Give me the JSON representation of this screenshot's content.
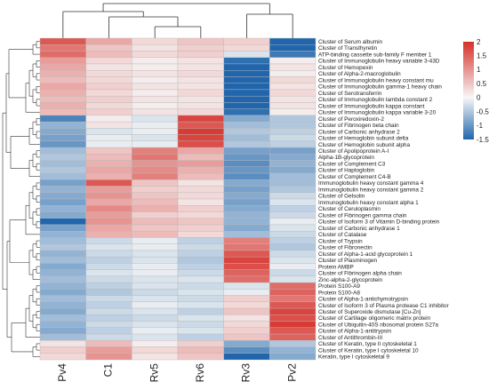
{
  "chart_data": {
    "type": "heatmap",
    "title": "",
    "xlabel": "",
    "ylabel": "",
    "columns": [
      "Pv4",
      "C1",
      "Rv5",
      "Rv6",
      "Rv3",
      "Pv2"
    ],
    "rows": [
      "Cluster of Serum albumin",
      "Cluster of Transthyretin",
      "ATP-binding cassette sub-family F member 1",
      "Cluster of Immunoglobulin heavy variable 3-43D",
      "Cluster of Hemopexin",
      "Cluster of Alpha-2-macroglobulin",
      "Cluster of Immunoglobulin heavy constant mu",
      "Cluster of Immunoglobulin gamma-1 heavy chain",
      "Cluster of Serotransferrin",
      "Cluster of Immunoglobulin lambda constant 2",
      "Cluster of Immunoglobulin kappa constant",
      "Cluster of Immunoglobulin kappa variable 3-20",
      "Cluster of Peroxiredoxin-2",
      "Cluster of Fibrinogen beta chain",
      "Cluster of Carbonic anhydrase 2",
      "Cluster of Hemoglobin subunit delta",
      "Cluster of Hemoglobin subunit alpha",
      "Cluster of Apolipoprotein A-I",
      "Alpha-1B-glycoprotein",
      "Cluster of Complement C3",
      "Cluster of Haptoglobin",
      "Cluster of Complement C4-B",
      "Immunoglobulin heavy constant gamma 4",
      "Immunoglobulin heavy constant gamma 2",
      "Cluster of Gelsolin",
      "Immunoglobulin heavy constant alpha 1",
      "Cluster of Ceruloplasmin",
      "Cluster of Fibrinogen gamma chain",
      "Cluster of Isoform 3 of Vitamin D-binding protein",
      "Cluster of Carbonic anhydrase 1",
      "Cluster of Catalase",
      "Cluster of Trypsin",
      "Cluster of Fibronectin",
      "Cluster of Alpha-1-acid glycoprotein 1",
      "Cluster of Plasminogen",
      "Protein AMBP",
      "Cluster of Fibrinogen alpha chain",
      "Zinc-alpha-2-glycoprotein",
      "Protein S100-A9",
      "Protein S100-A8",
      "Cluster of Alpha-1-antichymotrypsin",
      "Cluster of Isoform 3 of Plasma protease C1 inhibitor",
      "Cluster of Superoxide dismutase [Cu-Zn]",
      "Cluster of Cartilage oligomeric matrix protein",
      "Cluster of Ubiquitin-40S ribosomal protein S27a",
      "Cluster of Alpha-1-antitrypsin",
      "Cluster of Antithrombin-III",
      "Cluster of Keratin, type II cytoskeletal 1",
      "Cluster of Keratin, type I cytoskeletal 10",
      "Keratin, type I cytoskeletal 9"
    ],
    "values": [
      [
        1.6,
        0.8,
        0.3,
        0.5,
        0.4,
        -1.8
      ],
      [
        1.3,
        0.5,
        0.2,
        0.4,
        0.3,
        -1.5
      ],
      [
        1.4,
        0.6,
        0.3,
        0.4,
        -0.2,
        -1.3
      ],
      [
        0.9,
        0.3,
        0.1,
        0.2,
        -1.4,
        0.1
      ],
      [
        0.8,
        0.2,
        0.1,
        0.2,
        -1.5,
        0.2
      ],
      [
        0.7,
        0.3,
        0.2,
        0.3,
        -1.5,
        0.1
      ],
      [
        0.6,
        0.3,
        0.1,
        0.2,
        -1.6,
        0.3
      ],
      [
        0.8,
        0.4,
        0.2,
        0.2,
        -1.6,
        0.2
      ],
      [
        0.7,
        0.3,
        0.1,
        0.3,
        -1.7,
        0.3
      ],
      [
        0.6,
        0.4,
        0.2,
        0.2,
        -1.6,
        0.2
      ],
      [
        0.7,
        0.3,
        0.1,
        0.2,
        -1.5,
        0.2
      ],
      [
        0.6,
        0.4,
        0.2,
        0.3,
        -1.4,
        0.1
      ],
      [
        -1.2,
        0.1,
        -0.2,
        1.8,
        -0.8,
        -0.5
      ],
      [
        -0.7,
        0.2,
        -0.1,
        1.6,
        -0.6,
        -0.5
      ],
      [
        -0.8,
        -0.2,
        -0.1,
        1.9,
        -0.5,
        -0.4
      ],
      [
        -0.9,
        -0.1,
        -0.2,
        1.8,
        -0.6,
        -0.3
      ],
      [
        -1.0,
        -0.1,
        -0.1,
        1.7,
        -0.5,
        -0.4
      ],
      [
        -0.6,
        0.5,
        1.2,
        0.8,
        -0.9,
        -0.9
      ],
      [
        -0.5,
        0.6,
        1.3,
        0.6,
        -1.0,
        -0.8
      ],
      [
        -0.6,
        0.7,
        1.0,
        0.9,
        -1.1,
        -0.7
      ],
      [
        -0.5,
        0.8,
        1.1,
        0.7,
        -1.0,
        -0.8
      ],
      [
        -0.6,
        0.7,
        1.2,
        0.6,
        -1.1,
        -0.6
      ],
      [
        -0.9,
        1.6,
        0.5,
        0.2,
        -0.8,
        -0.6
      ],
      [
        -0.7,
        0.9,
        0.4,
        0.3,
        -0.9,
        -0.5
      ],
      [
        -0.8,
        1.0,
        0.5,
        0.3,
        -0.8,
        -0.3
      ],
      [
        -0.9,
        0.8,
        0.6,
        0.2,
        -0.9,
        -0.2
      ],
      [
        -0.7,
        1.1,
        0.7,
        0.4,
        -0.8,
        -0.4
      ],
      [
        -0.8,
        0.9,
        0.4,
        0.3,
        -0.7,
        -0.3
      ],
      [
        -1.6,
        1.0,
        0.6,
        0.5,
        -0.7,
        -0.1
      ],
      [
        -0.9,
        0.8,
        0.5,
        0.4,
        -0.8,
        -0.2
      ],
      [
        -0.7,
        0.7,
        0.6,
        0.3,
        -0.6,
        -0.3
      ],
      [
        -0.6,
        -0.3,
        -0.1,
        -0.4,
        1.2,
        -0.4
      ],
      [
        -0.5,
        -0.2,
        -0.1,
        -0.3,
        1.3,
        -0.5
      ],
      [
        -0.7,
        -0.3,
        -0.2,
        -0.4,
        1.6,
        -0.3
      ],
      [
        -0.6,
        -0.4,
        -0.2,
        -0.5,
        1.8,
        -0.2
      ],
      [
        -0.8,
        -0.3,
        -0.1,
        -0.4,
        1.7,
        -0.1
      ],
      [
        -0.7,
        -0.2,
        -0.1,
        -0.3,
        1.5,
        -0.3
      ],
      [
        -0.6,
        -0.3,
        -0.2,
        -0.2,
        1.4,
        -0.2
      ],
      [
        -0.7,
        -0.4,
        -0.2,
        -0.3,
        -0.2,
        1.4
      ],
      [
        -0.8,
        -0.5,
        -0.3,
        -0.2,
        -0.1,
        1.5
      ],
      [
        -0.6,
        -0.3,
        -0.2,
        -0.3,
        0.4,
        1.3
      ],
      [
        -0.7,
        -0.4,
        -0.1,
        -0.2,
        0.3,
        1.6
      ],
      [
        -0.8,
        -0.3,
        -0.2,
        -0.4,
        0.5,
        1.8
      ],
      [
        -0.6,
        -0.4,
        -0.3,
        -0.2,
        0.2,
        1.7
      ],
      [
        -0.7,
        -0.3,
        -0.2,
        -0.3,
        0.3,
        1.9
      ],
      [
        -0.8,
        -0.4,
        -0.1,
        -0.2,
        0.4,
        1.6
      ],
      [
        -0.6,
        -0.3,
        -0.2,
        -0.4,
        0.5,
        1.5
      ],
      [
        0.2,
        0.6,
        0.1,
        0.4,
        -0.8,
        -0.5
      ],
      [
        0.4,
        0.9,
        0.3,
        0.6,
        -1.1,
        -0.7
      ],
      [
        0.3,
        1.0,
        0.2,
        0.5,
        -1.6,
        -0.8
      ]
    ],
    "color_scale": {
      "min": -1.5,
      "max": 2,
      "ticks": [
        -1.5,
        -1,
        -0.5,
        0,
        0.5,
        1,
        1.5,
        2
      ],
      "low_color": "#2166ac",
      "mid_color": "#f7f7f7",
      "high_color": "#d6302a"
    },
    "column_dendrogram": true,
    "row_dendrogram": true,
    "legend_position": "top-right"
  }
}
